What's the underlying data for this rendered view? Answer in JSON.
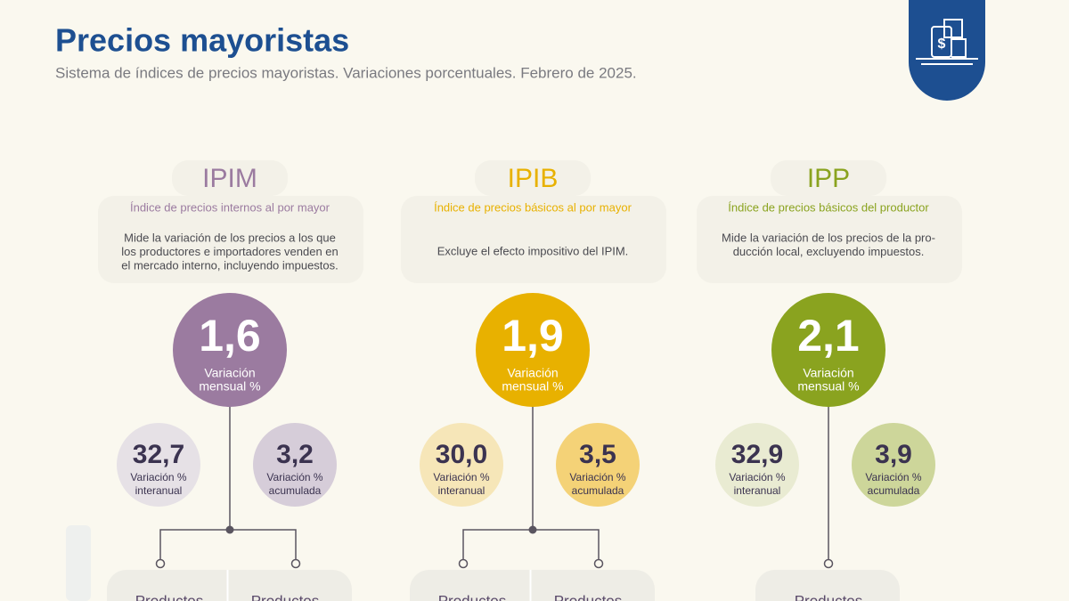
{
  "header": {
    "title": "Precios mayoristas",
    "subtitle": "Sistema de índices de precios mayoristas. Variaciones porcentuales. Febrero de 2025."
  },
  "indices": [
    {
      "name": "IPIM",
      "full_name": "Índice de precios internos al por mayor",
      "description": [
        "Mide la variación de los precios a los que",
        "los productores e importadores venden en",
        "el mercado interno, incluyendo impuestos."
      ],
      "monthly": {
        "value": "1,6",
        "label": [
          "Variación",
          "mensual %"
        ]
      },
      "annual": {
        "value": "32,7",
        "label": [
          "Variación %",
          "interanual"
        ]
      },
      "accumulated": {
        "value": "3,2",
        "label": [
          "Variación %",
          "acumulada"
        ]
      },
      "breakdown": [
        "Productos",
        "Productos"
      ]
    },
    {
      "name": "IPIB",
      "full_name": "Índice de precios básicos al por mayor",
      "description": [
        "Excluye el efecto impositivo del IPIM."
      ],
      "monthly": {
        "value": "1,9",
        "label": [
          "Variación",
          "mensual %"
        ]
      },
      "annual": {
        "value": "30,0",
        "label": [
          "Variación %",
          "interanual"
        ]
      },
      "accumulated": {
        "value": "3,5",
        "label": [
          "Variación %",
          "acumulada"
        ]
      },
      "breakdown": [
        "Productos",
        "Productos"
      ]
    },
    {
      "name": "IPP",
      "full_name": "Índice de precios básicos del productor",
      "description": [
        "Mide la variación de los precios de la pro-",
        "ducción local, excluyendo impuestos."
      ],
      "monthly": {
        "value": "2,1",
        "label": [
          "Variación",
          "mensual %"
        ]
      },
      "annual": {
        "value": "32,9",
        "label": [
          "Variación %",
          "interanual"
        ]
      },
      "accumulated": {
        "value": "3,9",
        "label": [
          "Variación %",
          "acumulada"
        ]
      },
      "breakdown": [
        "Productos"
      ]
    }
  ]
}
